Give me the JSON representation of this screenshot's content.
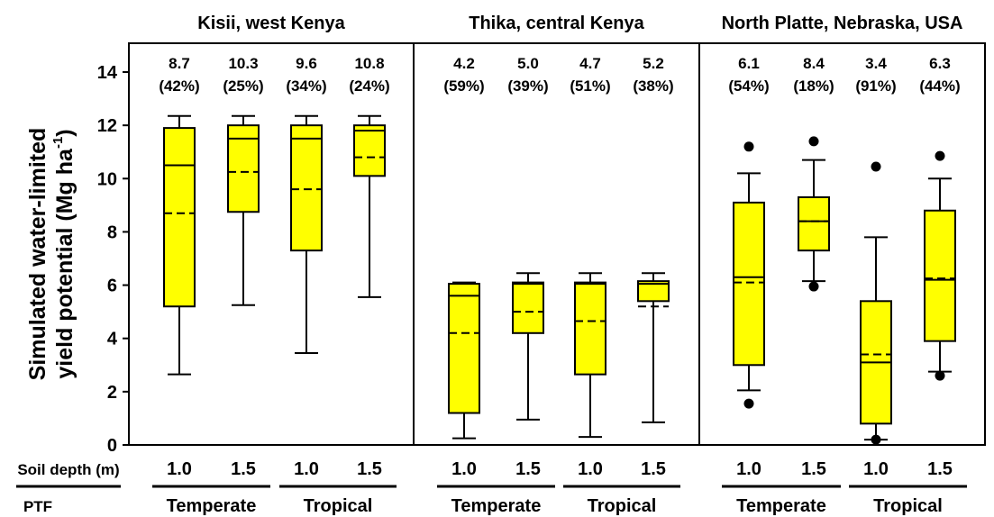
{
  "chart_data": {
    "type": "box",
    "ylabel_line1": "Simulated water-limited",
    "ylabel_line2_pre": "yield potential (Mg ha",
    "ylabel_line2_sup": "-1",
    "ylabel_line2_post": ")",
    "ylim": [
      0,
      14
    ],
    "yticks": [
      "0",
      "2",
      "4",
      "6",
      "8",
      "10",
      "12",
      "14"
    ],
    "row_label_depth": "Soil depth (m)",
    "row_label_ptf": "PTF",
    "box_color": "#ffff00",
    "panels": [
      {
        "title": "Kisii, west Kenya",
        "ptf_groups": [
          "Temperate",
          "Tropical"
        ],
        "boxes": [
          {
            "depth": "1.0",
            "mean_label": "8.7",
            "cv_label": "(42%)",
            "whisker_low": 2.65,
            "q1": 5.2,
            "median": 10.5,
            "mean": 8.7,
            "q3": 11.9,
            "whisker_high": 12.35,
            "outliers": []
          },
          {
            "depth": "1.5",
            "mean_label": "10.3",
            "cv_label": "(25%)",
            "whisker_low": 5.25,
            "q1": 8.75,
            "median": 11.5,
            "mean": 10.25,
            "q3": 12.0,
            "whisker_high": 12.35,
            "outliers": []
          },
          {
            "depth": "1.0",
            "mean_label": "9.6",
            "cv_label": "(34%)",
            "whisker_low": 3.45,
            "q1": 7.3,
            "median": 11.5,
            "mean": 9.6,
            "q3": 12.0,
            "whisker_high": 12.35,
            "outliers": []
          },
          {
            "depth": "1.5",
            "mean_label": "10.8",
            "cv_label": "(24%)",
            "whisker_low": 5.55,
            "q1": 10.1,
            "median": 11.8,
            "mean": 10.8,
            "q3": 12.0,
            "whisker_high": 12.35,
            "outliers": []
          }
        ]
      },
      {
        "title": "Thika, central Kenya",
        "ptf_groups": [
          "Temperate",
          "Tropical"
        ],
        "boxes": [
          {
            "depth": "1.0",
            "mean_label": "4.2",
            "cv_label": "(59%)",
            "whisker_low": 0.25,
            "q1": 1.2,
            "median": 5.6,
            "mean": 4.2,
            "q3": 6.05,
            "whisker_high": 6.1,
            "outliers": []
          },
          {
            "depth": "1.5",
            "mean_label": "5.0",
            "cv_label": "(39%)",
            "whisker_low": 0.95,
            "q1": 4.2,
            "median": 6.05,
            "mean": 5.0,
            "q3": 6.1,
            "whisker_high": 6.45,
            "outliers": []
          },
          {
            "depth": "1.0",
            "mean_label": "4.7",
            "cv_label": "(51%)",
            "whisker_low": 0.3,
            "q1": 2.65,
            "median": 6.05,
            "mean": 4.65,
            "q3": 6.1,
            "whisker_high": 6.45,
            "outliers": []
          },
          {
            "depth": "1.5",
            "mean_label": "5.2",
            "cv_label": "(38%)",
            "whisker_low": 0.85,
            "q1": 5.4,
            "median": 6.05,
            "mean": 5.2,
            "q3": 6.15,
            "whisker_high": 6.45,
            "outliers": []
          }
        ]
      },
      {
        "title": "North Platte, Nebraska, USA",
        "ptf_groups": [
          "Temperate",
          "Tropical"
        ],
        "boxes": [
          {
            "depth": "1.0",
            "mean_label": "6.1",
            "cv_label": "(54%)",
            "whisker_low": 2.05,
            "q1": 3.0,
            "median": 6.3,
            "mean": 6.1,
            "q3": 9.1,
            "whisker_high": 10.2,
            "outliers": [
              1.55,
              11.2
            ]
          },
          {
            "depth": "1.5",
            "mean_label": "8.4",
            "cv_label": "(18%)",
            "whisker_low": 6.15,
            "q1": 7.3,
            "median": 8.4,
            "mean": 8.4,
            "q3": 9.3,
            "whisker_high": 10.7,
            "outliers": [
              5.95,
              11.4
            ]
          },
          {
            "depth": "1.0",
            "mean_label": "3.4",
            "cv_label": "(91%)",
            "whisker_low": 0.2,
            "q1": 0.8,
            "median": 3.1,
            "mean": 3.4,
            "q3": 5.4,
            "whisker_high": 7.8,
            "outliers": [
              0.2,
              10.45
            ]
          },
          {
            "depth": "1.5",
            "mean_label": "6.3",
            "cv_label": "(44%)",
            "whisker_low": 2.75,
            "q1": 3.9,
            "median": 6.2,
            "mean": 6.25,
            "q3": 8.8,
            "whisker_high": 10.0,
            "outliers": [
              2.6,
              10.85
            ]
          }
        ]
      }
    ]
  }
}
